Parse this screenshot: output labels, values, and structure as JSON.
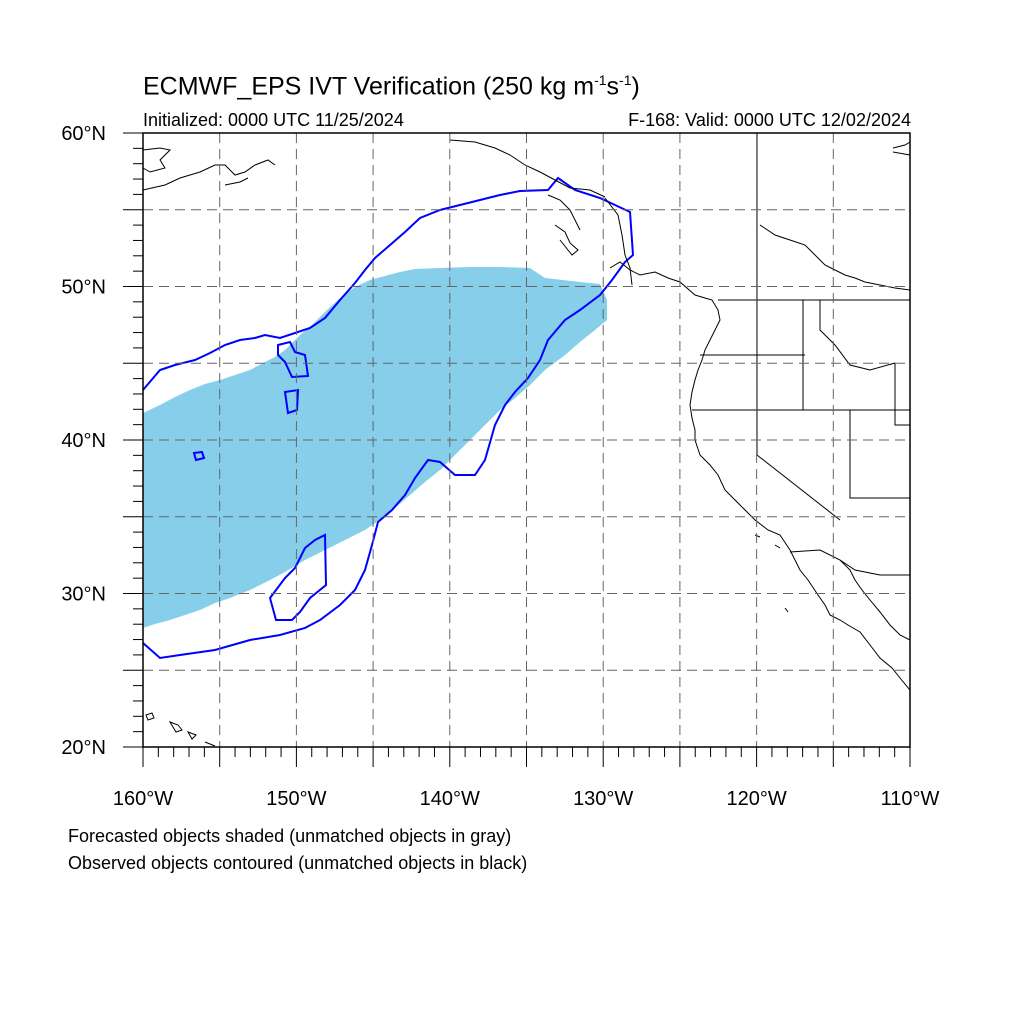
{
  "title": {
    "main": "ECMWF_EPS IVT Verification (250 kg m",
    "sup1": "-1",
    "mid": "s",
    "sup2": "-1",
    "end": ")"
  },
  "subtitle": {
    "initialized": "Initialized: 0000 UTC 11/25/2024",
    "valid": "F-168: Valid: 0000 UTC 12/02/2024"
  },
  "footnotes": {
    "line1": "Forecasted objects shaded (unmatched objects in gray)",
    "line2": "Observed objects contoured (unmatched objects in black)"
  },
  "map": {
    "extent": {
      "lon": [
        -160,
        -110
      ],
      "lat": [
        20,
        60
      ]
    },
    "lat_labels": [
      "60°N",
      "50°N",
      "40°N",
      "30°N",
      "20°N"
    ],
    "lon_labels": [
      "160°W",
      "150°W",
      "140°W",
      "130°W",
      "120°W",
      "110°W"
    ],
    "lat_values": [
      60,
      50,
      40,
      30,
      20
    ],
    "lon_values": [
      -160,
      -150,
      -140,
      -130,
      -120,
      -110
    ],
    "colors": {
      "forecast_fill": "#87ceeb",
      "observed_contour": "#0000ff",
      "coastline": "#000000",
      "grid": "#666666"
    }
  }
}
